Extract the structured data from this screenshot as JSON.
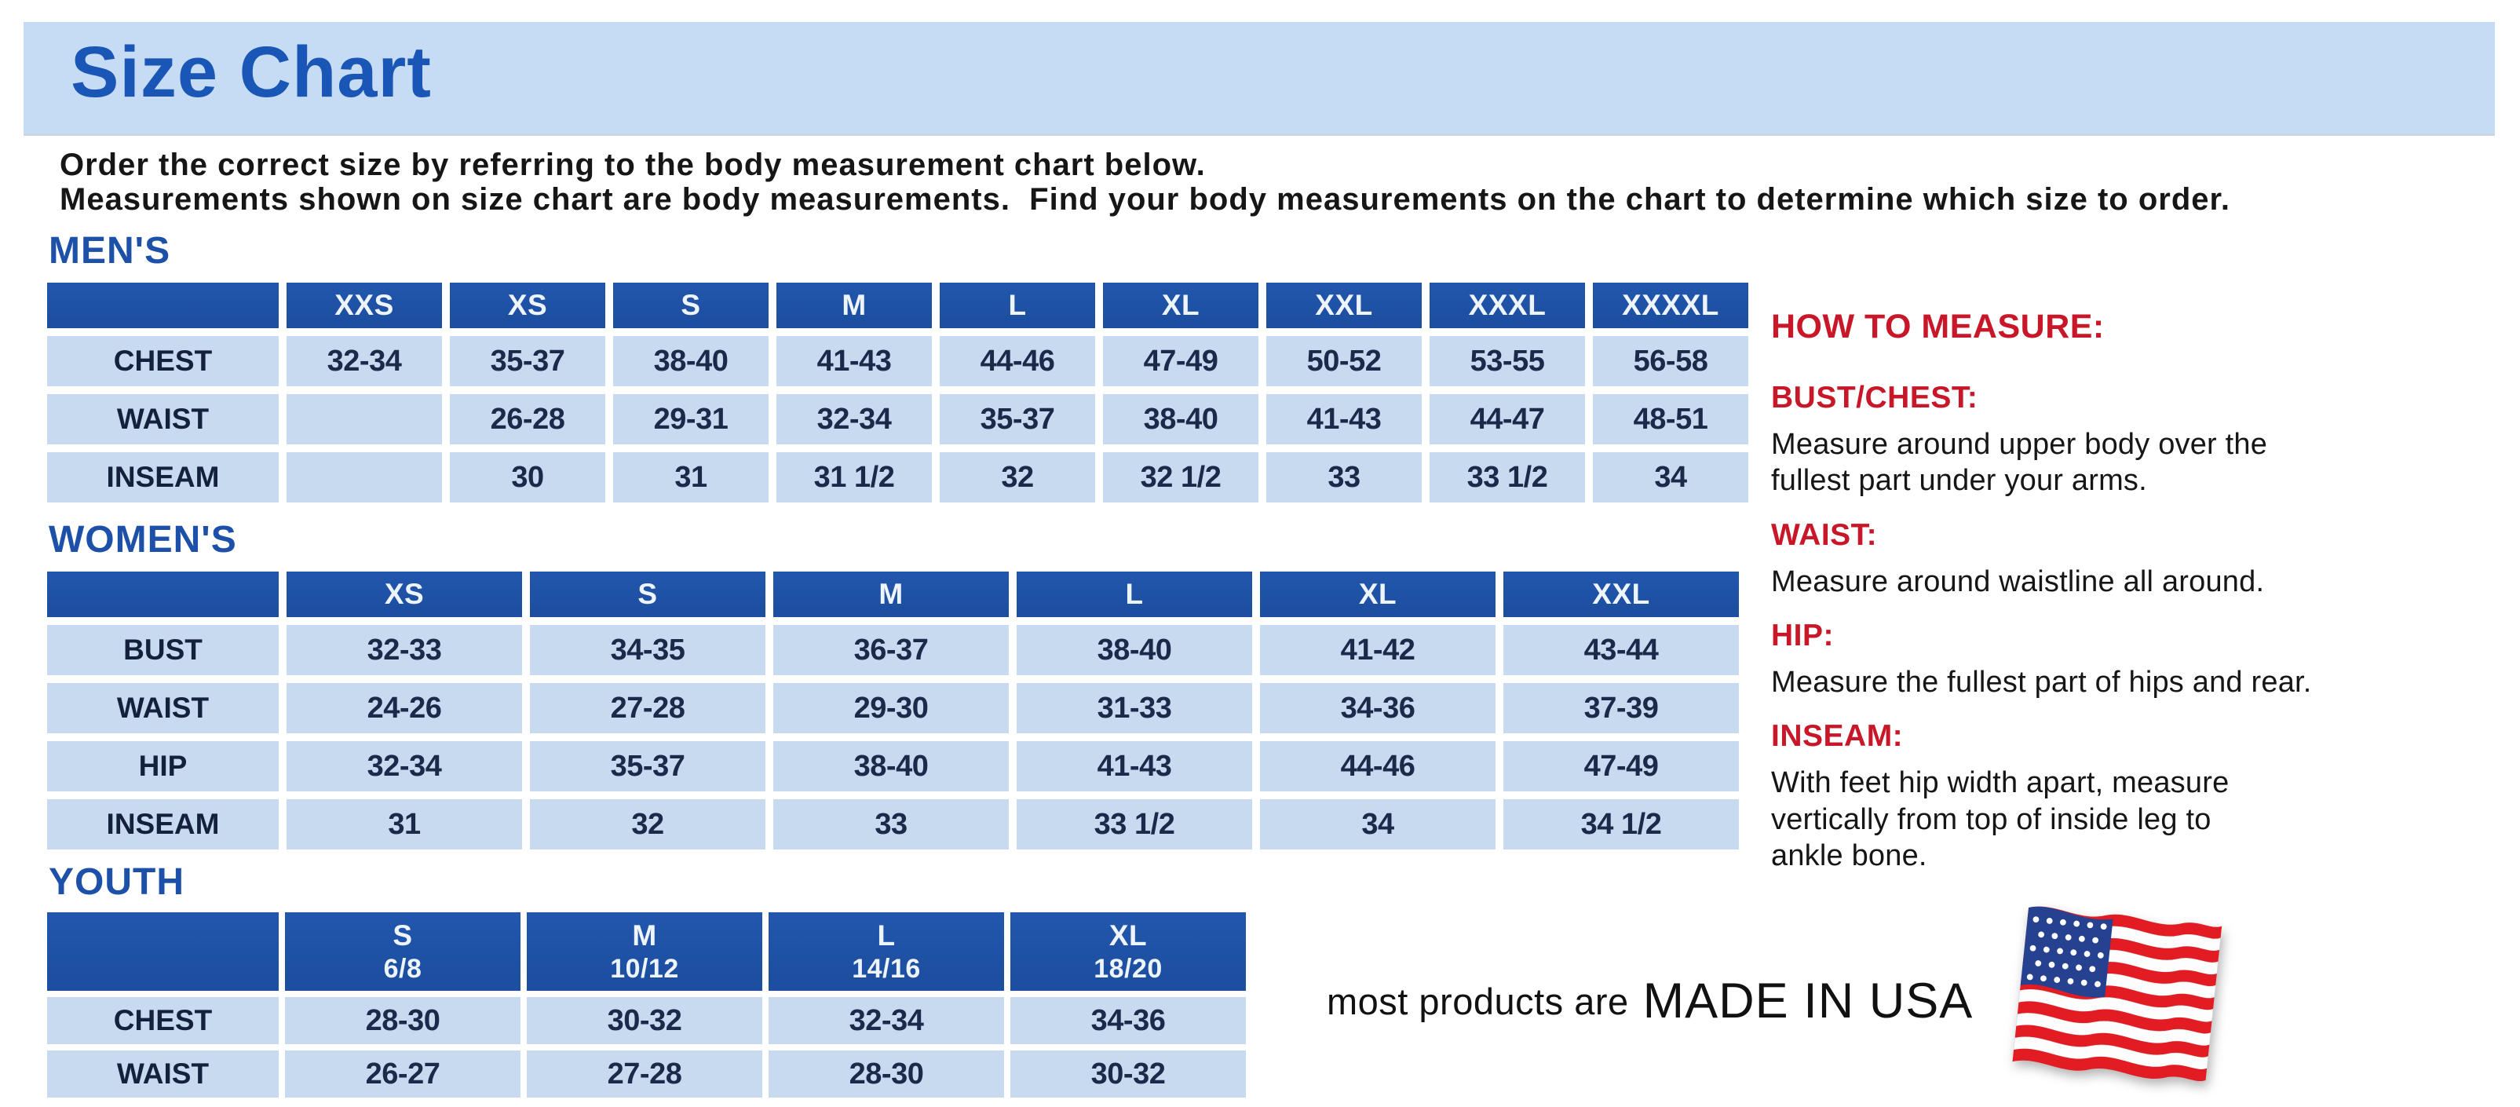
{
  "banner": {
    "title": "Size Chart"
  },
  "intro": {
    "line1": "Order the correct size by referring to the body measurement chart below.",
    "line2": "Measurements shown on size chart are body measurements.  Find your body measurements on the chart to determine which size to order."
  },
  "tables": {
    "mens": {
      "heading": "MEN'S",
      "columns": [
        "XXS",
        "XS",
        "S",
        "M",
        "L",
        "XL",
        "XXL",
        "XXXL",
        "XXXXL"
      ],
      "rows": [
        {
          "label": "CHEST",
          "values": [
            "32-34",
            "35-37",
            "38-40",
            "41-43",
            "44-46",
            "47-49",
            "50-52",
            "53-55",
            "56-58"
          ]
        },
        {
          "label": "WAIST",
          "values": [
            "",
            "26-28",
            "29-31",
            "32-34",
            "35-37",
            "38-40",
            "41-43",
            "44-47",
            "48-51"
          ]
        },
        {
          "label": "INSEAM",
          "values": [
            "",
            "30",
            "31",
            "31 1/2",
            "32",
            "32 1/2",
            "33",
            "33 1/2",
            "34"
          ]
        }
      ]
    },
    "womens": {
      "heading": "WOMEN'S",
      "columns": [
        "XS",
        "S",
        "M",
        "L",
        "XL",
        "XXL"
      ],
      "rows": [
        {
          "label": "BUST",
          "values": [
            "32-33",
            "34-35",
            "36-37",
            "38-40",
            "41-42",
            "43-44"
          ]
        },
        {
          "label": "WAIST",
          "values": [
            "24-26",
            "27-28",
            "29-30",
            "31-33",
            "34-36",
            "37-39"
          ]
        },
        {
          "label": "HIP",
          "values": [
            "32-34",
            "35-37",
            "38-40",
            "41-43",
            "44-46",
            "47-49"
          ]
        },
        {
          "label": "INSEAM",
          "values": [
            "31",
            "32",
            "33",
            "33 1/2",
            "34",
            "34 1/2"
          ]
        }
      ]
    },
    "youth": {
      "heading": "YOUTH",
      "columns": [
        {
          "label": "S",
          "sub": "6/8"
        },
        {
          "label": "M",
          "sub": "10/12"
        },
        {
          "label": "L",
          "sub": "14/16"
        },
        {
          "label": "XL",
          "sub": "18/20"
        }
      ],
      "rows": [
        {
          "label": "CHEST",
          "values": [
            "28-30",
            "30-32",
            "32-34",
            "34-36"
          ]
        },
        {
          "label": "WAIST",
          "values": [
            "26-27",
            "27-28",
            "28-30",
            "30-32"
          ]
        }
      ]
    }
  },
  "how_to_measure": {
    "heading": "HOW TO MEASURE:",
    "items": [
      {
        "term": "BUST/CHEST:",
        "lines": [
          "Measure around upper body over the",
          "fullest part under your arms."
        ]
      },
      {
        "term": "WAIST:",
        "lines": [
          "Measure around waistline all around."
        ]
      },
      {
        "term": "HIP:",
        "lines": [
          "Measure the fullest part of hips and rear."
        ]
      },
      {
        "term": "INSEAM:",
        "lines": [
          "With feet hip width apart, measure",
          "vertically from top of inside leg to",
          "ankle bone."
        ]
      }
    ]
  },
  "footer": {
    "prefix": "most products are",
    "emphasis": "MADE IN USA",
    "flag_icon": "usa-flag-icon"
  },
  "colors": {
    "banner_bg": "#c6dcf4",
    "title_blue": "#1956b5",
    "heading_blue": "#1d50a8",
    "header_blue": "#1d4fa1",
    "cell_blue": "#c8daf0",
    "accent_red": "#c81728",
    "flag_red": "#e31c23",
    "flag_blue": "#26418f"
  }
}
